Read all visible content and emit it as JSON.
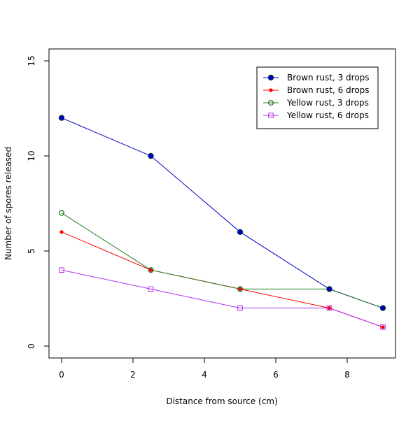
{
  "chart_data": {
    "type": "line",
    "title": "",
    "xlabel": "Distance from source (cm)",
    "ylabel": "Number of spores released",
    "xlim": [
      -0.36,
      9.36
    ],
    "ylim": [
      -0.6,
      15.6
    ],
    "x_ticks": [
      "0",
      "2",
      "4",
      "6",
      "8"
    ],
    "y_ticks": [
      "0",
      "5",
      "10",
      "15"
    ],
    "x": [
      0,
      2.5,
      5,
      7.5,
      9
    ],
    "legend_position": "top-right",
    "series": [
      {
        "name": "Brown rust, 3 drops",
        "values": [
          12,
          10,
          6,
          3,
          2
        ],
        "color": "#0000cc",
        "marker": "filled-circle-large"
      },
      {
        "name": "Brown rust, 6 drops",
        "values": [
          6,
          4,
          3,
          2,
          1
        ],
        "color": "#ff0000",
        "marker": "filled-circle-small"
      },
      {
        "name": "Yellow rust, 3 drops",
        "values": [
          7,
          4,
          3,
          3,
          2
        ],
        "color": "#1e7a1e",
        "marker": "open-circle"
      },
      {
        "name": "Yellow rust, 6 drops",
        "values": [
          4,
          3,
          2,
          2,
          1
        ],
        "color": "#b030f0",
        "marker": "open-square"
      }
    ]
  }
}
